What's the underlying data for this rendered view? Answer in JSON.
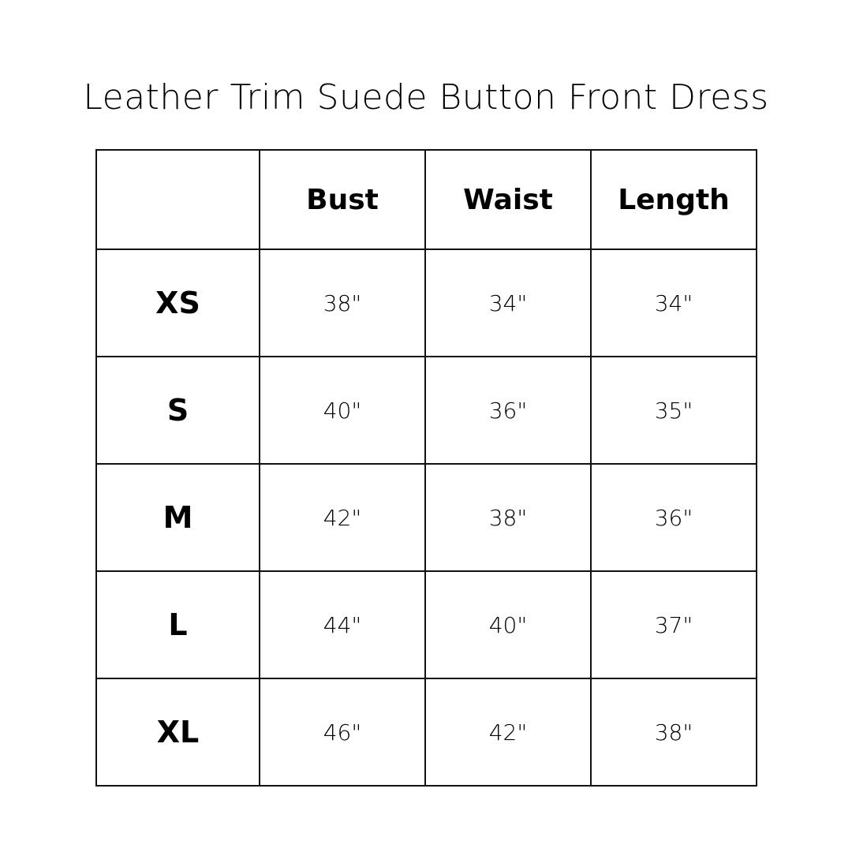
{
  "title": "Leather Trim Suede Button Front Dress",
  "headers": [
    "",
    "Bust",
    "Waist",
    "Length"
  ],
  "rows": [
    {
      "size": "XS",
      "bust": "38\"",
      "waist": "34\"",
      "length": "34\""
    },
    {
      "size": "S",
      "bust": "40\"",
      "waist": "36\"",
      "length": "35\""
    },
    {
      "size": "M",
      "bust": "42\"",
      "waist": "38\"",
      "length": "36\""
    },
    {
      "size": "L",
      "bust": "44\"",
      "waist": "40\"",
      "length": "37\""
    },
    {
      "size": "XL",
      "bust": "46\"",
      "waist": "42\"",
      "length": "38\""
    }
  ]
}
